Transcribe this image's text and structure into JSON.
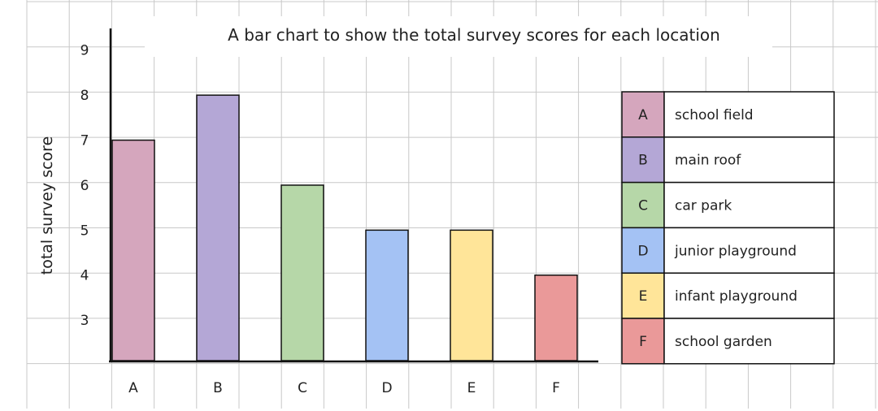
{
  "chart_data": {
    "type": "bar",
    "title": "A bar chart to show the total survey scores for each location",
    "xlabel": "",
    "ylabel": "total survey score",
    "categories": [
      "A",
      "B",
      "C",
      "D",
      "E",
      "F"
    ],
    "values": [
      7,
      8,
      6,
      5,
      5,
      4
    ],
    "colors": [
      "#d5a6bd",
      "#b4a7d6",
      "#b6d7a8",
      "#a4c2f4",
      "#ffe599",
      "#ea9999"
    ],
    "y_ticks": [
      "3",
      "4",
      "5",
      "6",
      "7",
      "8",
      "9"
    ],
    "ylim": [
      2.1,
      9.5
    ],
    "grid": true,
    "legend_position": "right",
    "legend": [
      {
        "key": "A",
        "label": "school field",
        "color": "#d5a6bd"
      },
      {
        "key": "B",
        "label": "main roof",
        "color": "#b4a7d6"
      },
      {
        "key": "C",
        "label": "car park",
        "color": "#b6d7a8"
      },
      {
        "key": "D",
        "label": "junior playground",
        "color": "#a4c2f4"
      },
      {
        "key": "E",
        "label": "infant playground",
        "color": "#ffe599"
      },
      {
        "key": "F",
        "label": "school garden",
        "color": "#ea9999"
      }
    ]
  }
}
